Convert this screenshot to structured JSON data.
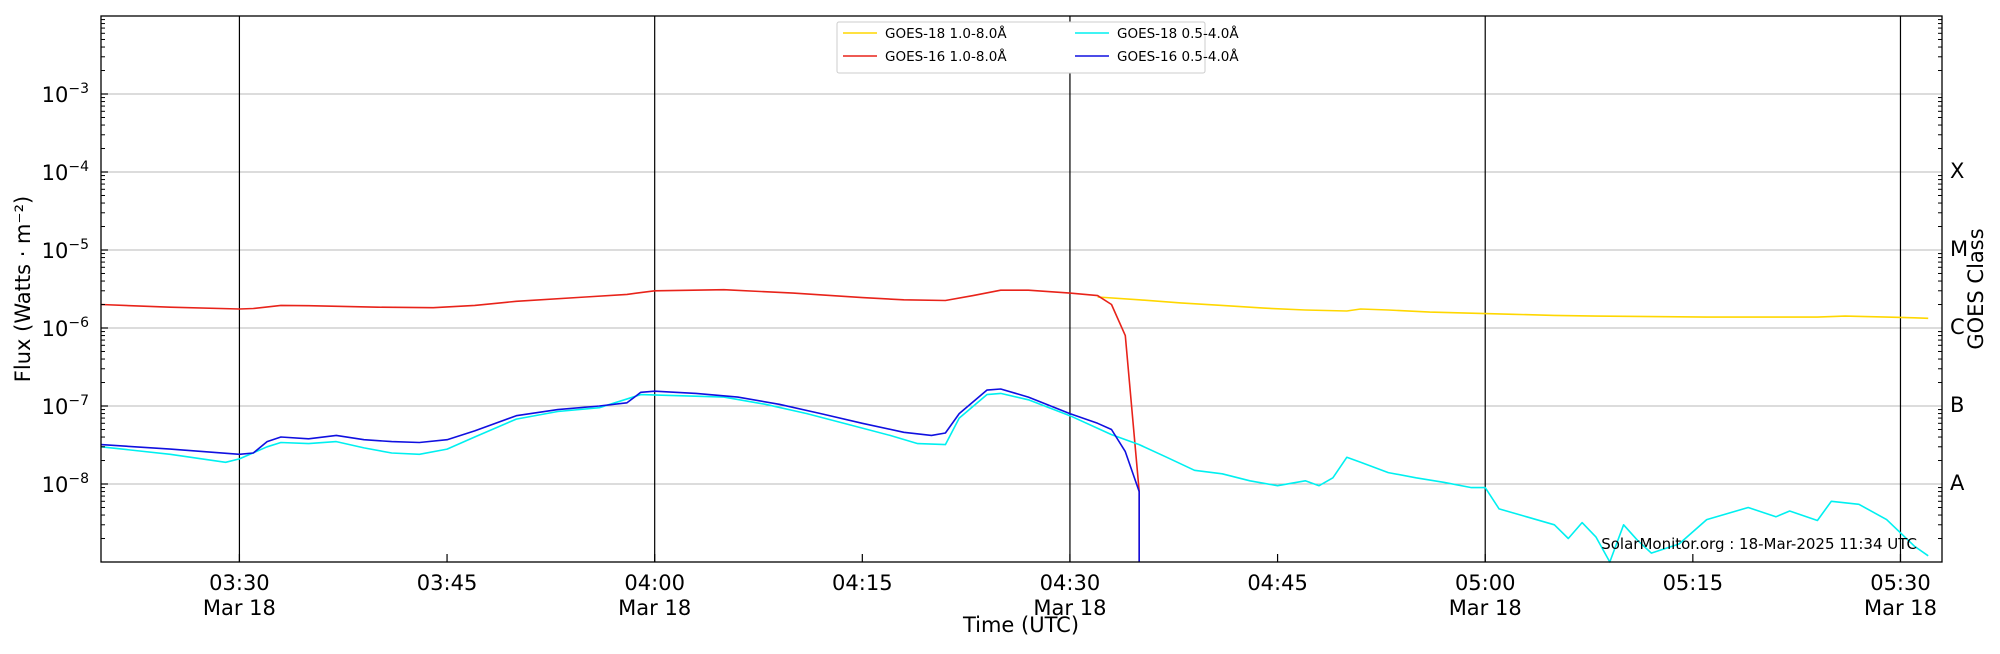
{
  "chart_data": {
    "type": "line",
    "title": "",
    "xlabel": "Time (UTC)",
    "ylabel": "Flux (Watts · m⁻²)",
    "ylabel_right": "GOES Class",
    "y_scale": "log",
    "ylim": [
      1e-09,
      0.01
    ],
    "xlim": [
      "03:20",
      "05:33"
    ],
    "date": "Mar 18",
    "grid": "horizontal",
    "legend_position": "top-center",
    "credit": "SolarMonitor.org : 18-Mar-2025 11:34 UTC",
    "x_ticks": [
      {
        "time": "03:30",
        "label": "03:30",
        "date_label": "Mar 18"
      },
      {
        "time": "03:45",
        "label": "03:45",
        "date_label": ""
      },
      {
        "time": "04:00",
        "label": "04:00",
        "date_label": "Mar 18"
      },
      {
        "time": "04:15",
        "label": "04:15",
        "date_label": ""
      },
      {
        "time": "04:30",
        "label": "04:30",
        "date_label": "Mar 18"
      },
      {
        "time": "04:45",
        "label": "04:45",
        "date_label": ""
      },
      {
        "time": "05:00",
        "label": "05:00",
        "date_label": "Mar 18"
      },
      {
        "time": "05:15",
        "label": "05:15",
        "date_label": ""
      },
      {
        "time": "05:30",
        "label": "05:30",
        "date_label": "Mar 18"
      }
    ],
    "vertical_lines": [
      "03:30",
      "04:00",
      "04:30",
      "05:00",
      "05:30"
    ],
    "y_ticks": [
      {
        "base": "10",
        "exp": "−3",
        "value": 0.001
      },
      {
        "base": "10",
        "exp": "−4",
        "value": 0.0001
      },
      {
        "base": "10",
        "exp": "−5",
        "value": 1e-05
      },
      {
        "base": "10",
        "exp": "−6",
        "value": 1e-06
      },
      {
        "base": "10",
        "exp": "−7",
        "value": 1e-07
      },
      {
        "base": "10",
        "exp": "−8",
        "value": 1e-08
      }
    ],
    "goes_classes": [
      {
        "label": "X",
        "value": 0.0001
      },
      {
        "label": "M",
        "value": 1e-05
      },
      {
        "label": "C",
        "value": 1e-06
      },
      {
        "label": "B",
        "value": 1e-07
      },
      {
        "label": "A",
        "value": 1e-08
      }
    ],
    "series": [
      {
        "name": "GOES-18 1.0-8.0Å",
        "color": "#ffd700",
        "points": [
          [
            "04:32",
            2.5e-06
          ],
          [
            "04:35",
            2.3e-06
          ],
          [
            "04:38",
            2.1e-06
          ],
          [
            "04:41",
            1.95e-06
          ],
          [
            "04:44",
            1.8e-06
          ],
          [
            "04:47",
            1.7e-06
          ],
          [
            "04:50",
            1.65e-06
          ],
          [
            "04:51",
            1.75e-06
          ],
          [
            "04:53",
            1.7e-06
          ],
          [
            "04:56",
            1.6e-06
          ],
          [
            "04:59",
            1.55e-06
          ],
          [
            "05:02",
            1.5e-06
          ],
          [
            "05:05",
            1.45e-06
          ],
          [
            "05:08",
            1.42e-06
          ],
          [
            "05:12",
            1.4e-06
          ],
          [
            "05:16",
            1.38e-06
          ],
          [
            "05:20",
            1.38e-06
          ],
          [
            "05:24",
            1.38e-06
          ],
          [
            "05:26",
            1.42e-06
          ],
          [
            "05:29",
            1.38e-06
          ],
          [
            "05:31",
            1.35e-06
          ],
          [
            "05:32",
            1.33e-06
          ]
        ]
      },
      {
        "name": "GOES-16 1.0-8.0Å",
        "color": "#e8231a",
        "points": [
          [
            "03:20",
            2e-06
          ],
          [
            "03:25",
            1.85e-06
          ],
          [
            "03:30",
            1.75e-06
          ],
          [
            "03:31",
            1.78e-06
          ],
          [
            "03:33",
            1.95e-06
          ],
          [
            "03:35",
            1.93e-06
          ],
          [
            "03:40",
            1.85e-06
          ],
          [
            "03:44",
            1.82e-06
          ],
          [
            "03:47",
            1.95e-06
          ],
          [
            "03:50",
            2.2e-06
          ],
          [
            "03:55",
            2.5e-06
          ],
          [
            "03:58",
            2.7e-06
          ],
          [
            "04:00",
            3e-06
          ],
          [
            "04:05",
            3.1e-06
          ],
          [
            "04:10",
            2.8e-06
          ],
          [
            "04:15",
            2.45e-06
          ],
          [
            "04:18",
            2.3e-06
          ],
          [
            "04:21",
            2.25e-06
          ],
          [
            "04:23",
            2.6e-06
          ],
          [
            "04:25",
            3.05e-06
          ],
          [
            "04:27",
            3.05e-06
          ],
          [
            "04:30",
            2.8e-06
          ],
          [
            "04:32",
            2.6e-06
          ],
          [
            "04:33",
            2e-06
          ],
          [
            "04:34",
            8e-07
          ],
          [
            "04:35",
            8e-09
          ],
          [
            "04:35",
            1e-09
          ]
        ]
      },
      {
        "name": "GOES-18 0.5-4.0Å",
        "color": "#00f0f0",
        "points": [
          [
            "03:20",
            3e-08
          ],
          [
            "03:25",
            2.4e-08
          ],
          [
            "03:29",
            1.9e-08
          ],
          [
            "03:30",
            2.1e-08
          ],
          [
            "03:32",
            3e-08
          ],
          [
            "03:33",
            3.4e-08
          ],
          [
            "03:35",
            3.3e-08
          ],
          [
            "03:37",
            3.5e-08
          ],
          [
            "03:39",
            2.9e-08
          ],
          [
            "03:41",
            2.5e-08
          ],
          [
            "03:43",
            2.4e-08
          ],
          [
            "03:45",
            2.8e-08
          ],
          [
            "03:47",
            4e-08
          ],
          [
            "03:50",
            6.8e-08
          ],
          [
            "03:53",
            8.5e-08
          ],
          [
            "03:56",
            9.5e-08
          ],
          [
            "03:59",
            1.4e-07
          ],
          [
            "04:02",
            1.35e-07
          ],
          [
            "04:05",
            1.3e-07
          ],
          [
            "04:08",
            1.05e-07
          ],
          [
            "04:11",
            8e-08
          ],
          [
            "04:14",
            5.8e-08
          ],
          [
            "04:17",
            4.2e-08
          ],
          [
            "04:19",
            3.3e-08
          ],
          [
            "04:21",
            3.2e-08
          ],
          [
            "04:22",
            7e-08
          ],
          [
            "04:24",
            1.4e-07
          ],
          [
            "04:25",
            1.45e-07
          ],
          [
            "04:27",
            1.2e-07
          ],
          [
            "04:30",
            7.5e-08
          ],
          [
            "04:33",
            4.3e-08
          ],
          [
            "04:35",
            3.2e-08
          ],
          [
            "04:37",
            2.2e-08
          ],
          [
            "04:39",
            1.5e-08
          ],
          [
            "04:41",
            1.35e-08
          ],
          [
            "04:43",
            1.1e-08
          ],
          [
            "04:45",
            9.5e-09
          ],
          [
            "04:47",
            1.1e-08
          ],
          [
            "04:48",
            9.5e-09
          ],
          [
            "04:49",
            1.2e-08
          ],
          [
            "04:50",
            2.2e-08
          ],
          [
            "04:51",
            1.9e-08
          ],
          [
            "04:53",
            1.4e-08
          ],
          [
            "04:55",
            1.2e-08
          ],
          [
            "04:57",
            1.05e-08
          ],
          [
            "04:59",
            9e-09
          ],
          [
            "05:00",
            9e-09
          ],
          [
            "05:01",
            4.8e-09
          ],
          [
            "05:03",
            3.8e-09
          ],
          [
            "05:05",
            3e-09
          ],
          [
            "05:06",
            2e-09
          ],
          [
            "05:07",
            3.2e-09
          ],
          [
            "05:08",
            2.1e-09
          ],
          [
            "05:09",
            1e-09
          ],
          [
            "05:10",
            3e-09
          ],
          [
            "05:11",
            1.9e-09
          ],
          [
            "05:12",
            1.3e-09
          ],
          [
            "05:14",
            1.7e-09
          ],
          [
            "05:16",
            3.5e-09
          ],
          [
            "05:19",
            5e-09
          ],
          [
            "05:21",
            3.8e-09
          ],
          [
            "05:22",
            4.5e-09
          ],
          [
            "05:24",
            3.4e-09
          ],
          [
            "05:25",
            6e-09
          ],
          [
            "05:27",
            5.5e-09
          ],
          [
            "05:29",
            3.5e-09
          ],
          [
            "05:31",
            1.6e-09
          ],
          [
            "05:32",
            1.2e-09
          ]
        ]
      },
      {
        "name": "GOES-16 0.5-4.0Å",
        "color": "#1010e0",
        "points": [
          [
            "03:20",
            3.2e-08
          ],
          [
            "03:25",
            2.8e-08
          ],
          [
            "03:30",
            2.4e-08
          ],
          [
            "03:31",
            2.5e-08
          ],
          [
            "03:32",
            3.5e-08
          ],
          [
            "03:33",
            4e-08
          ],
          [
            "03:35",
            3.8e-08
          ],
          [
            "03:37",
            4.2e-08
          ],
          [
            "03:39",
            3.7e-08
          ],
          [
            "03:41",
            3.5e-08
          ],
          [
            "03:43",
            3.4e-08
          ],
          [
            "03:45",
            3.7e-08
          ],
          [
            "03:47",
            4.8e-08
          ],
          [
            "03:50",
            7.5e-08
          ],
          [
            "03:53",
            9e-08
          ],
          [
            "03:56",
            1e-07
          ],
          [
            "03:58",
            1.1e-07
          ],
          [
            "03:59",
            1.5e-07
          ],
          [
            "04:00",
            1.55e-07
          ],
          [
            "04:03",
            1.45e-07
          ],
          [
            "04:06",
            1.3e-07
          ],
          [
            "04:09",
            1.05e-07
          ],
          [
            "04:12",
            8e-08
          ],
          [
            "04:15",
            6e-08
          ],
          [
            "04:18",
            4.6e-08
          ],
          [
            "04:20",
            4.2e-08
          ],
          [
            "04:21",
            4.5e-08
          ],
          [
            "04:22",
            8e-08
          ],
          [
            "04:24",
            1.6e-07
          ],
          [
            "04:25",
            1.65e-07
          ],
          [
            "04:27",
            1.3e-07
          ],
          [
            "04:30",
            8e-08
          ],
          [
            "04:32",
            6e-08
          ],
          [
            "04:33",
            5e-08
          ],
          [
            "04:34",
            2.6e-08
          ],
          [
            "04:35",
            8e-09
          ],
          [
            "04:35",
            1e-09
          ]
        ]
      }
    ]
  }
}
